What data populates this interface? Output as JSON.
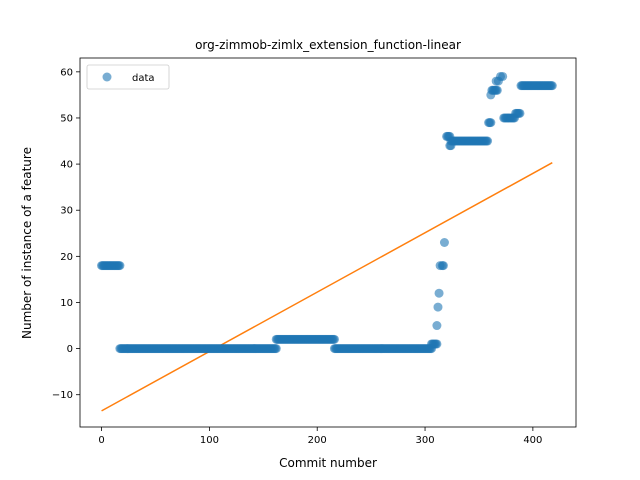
{
  "chart_data": {
    "type": "scatter",
    "title": "org-zimmob-zimlx_extension_function-linear",
    "xlabel": "Commit number",
    "ylabel": "Number of instance of a feature",
    "xlim": [
      -20,
      440
    ],
    "ylim": [
      -17,
      63
    ],
    "xticks": [
      0,
      100,
      200,
      300,
      400
    ],
    "yticks": [
      -10,
      0,
      10,
      20,
      30,
      40,
      50,
      60
    ],
    "xtick_labels": [
      "0",
      "100",
      "200",
      "300",
      "400"
    ],
    "ytick_labels": [
      "−10",
      "0",
      "10",
      "20",
      "30",
      "40",
      "50",
      "60"
    ],
    "grid": false,
    "legend": {
      "placement": "upper-left",
      "entries": [
        "data"
      ]
    },
    "colors": {
      "data": "#1f77b4",
      "fit": "#ff7f0e"
    },
    "series": [
      {
        "name": "data",
        "kind": "scatter",
        "segments": [
          {
            "x_from": 0,
            "x_to": 17,
            "y": 18
          },
          {
            "x_from": 17,
            "x_to": 162,
            "y": 0
          },
          {
            "x_from": 162,
            "x_to": 216,
            "y": 2
          },
          {
            "x_from": 216,
            "x_to": 306,
            "y": 0
          },
          {
            "x_from": 306,
            "x_to": 311,
            "y": 1
          },
          {
            "x_from": 320,
            "x_to": 323,
            "y": 46
          },
          {
            "x_from": 324,
            "x_to": 358,
            "y": 45
          },
          {
            "x_from": 359,
            "x_to": 361,
            "y": 49
          },
          {
            "x_from": 362,
            "x_to": 367,
            "y": 56
          },
          {
            "x_from": 373,
            "x_to": 383,
            "y": 50
          },
          {
            "x_from": 384,
            "x_to": 388,
            "y": 51
          },
          {
            "x_from": 389,
            "x_to": 418,
            "y": 57
          }
        ],
        "points": [
          [
            311,
            5
          ],
          [
            312,
            9
          ],
          [
            313,
            12
          ],
          [
            314,
            18
          ],
          [
            316,
            18
          ],
          [
            317,
            18
          ],
          [
            318,
            23
          ],
          [
            323,
            44
          ],
          [
            324,
            44
          ],
          [
            361,
            55
          ],
          [
            366,
            58
          ],
          [
            368,
            58
          ],
          [
            370,
            59
          ],
          [
            372,
            59
          ]
        ]
      },
      {
        "name": "",
        "kind": "line",
        "x": [
          0,
          418
        ],
        "y": [
          -13.5,
          40.3
        ]
      }
    ]
  }
}
